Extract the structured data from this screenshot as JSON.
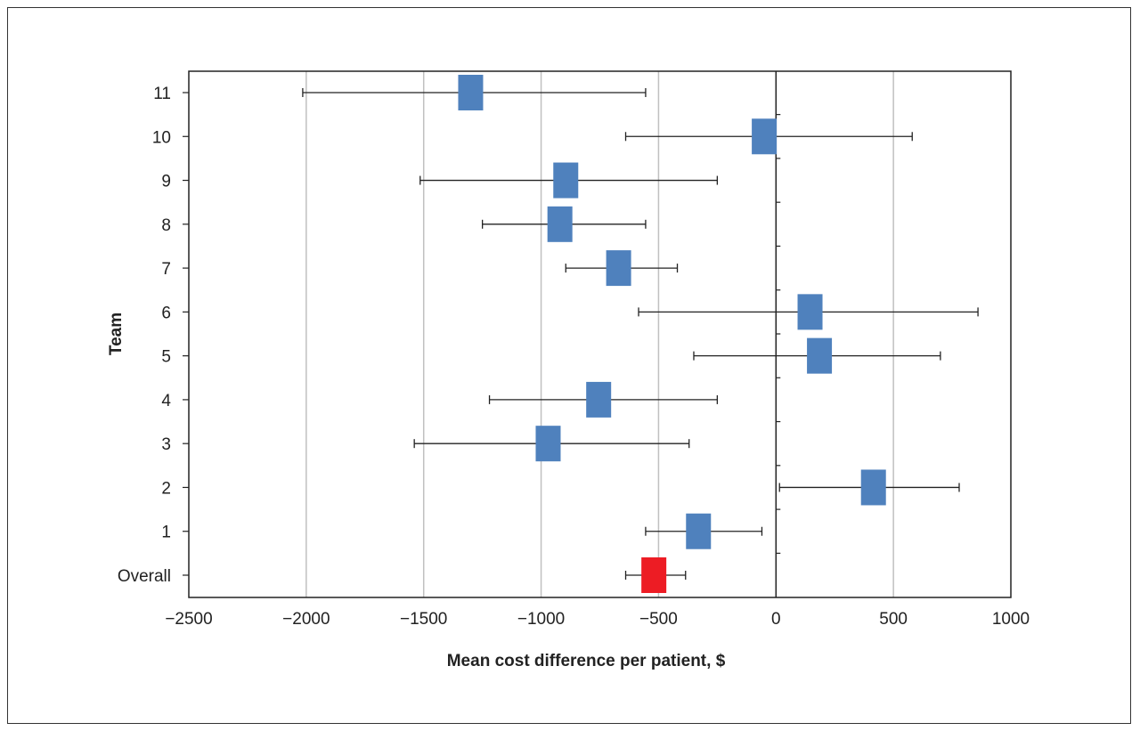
{
  "chart_data": {
    "type": "forest",
    "title": "",
    "xlabel": "Mean cost difference per patient, $",
    "ylabel": "Team",
    "xlim": [
      -2500,
      1000
    ],
    "xticks": [
      -2500,
      -2000,
      -1500,
      -1000,
      -500,
      0,
      500,
      1000
    ],
    "xtick_labels": [
      "−2500",
      "−2000",
      "−1500",
      "−1000",
      "−500",
      "0",
      "500",
      "1000"
    ],
    "grid": "vertical",
    "categories": [
      "Overall",
      "1",
      "2",
      "3",
      "4",
      "5",
      "6",
      "7",
      "8",
      "9",
      "10",
      "11"
    ],
    "points": [
      {
        "label": "Overall",
        "mean": -520,
        "lower": -640,
        "upper": -385
      },
      {
        "label": "1",
        "mean": -330,
        "lower": -555,
        "upper": -60
      },
      {
        "label": "2",
        "mean": 415,
        "lower": 15,
        "upper": 780
      },
      {
        "label": "3",
        "mean": -970,
        "lower": -1540,
        "upper": -370
      },
      {
        "label": "4",
        "mean": -755,
        "lower": -1220,
        "upper": -250
      },
      {
        "label": "5",
        "mean": 185,
        "lower": -350,
        "upper": 700
      },
      {
        "label": "6",
        "mean": 145,
        "lower": -585,
        "upper": 860
      },
      {
        "label": "7",
        "mean": -670,
        "lower": -895,
        "upper": -420
      },
      {
        "label": "8",
        "mean": -920,
        "lower": -1250,
        "upper": -555
      },
      {
        "label": "9",
        "mean": -895,
        "lower": -1515,
        "upper": -250
      },
      {
        "label": "10",
        "mean": -50,
        "lower": -640,
        "upper": 580
      },
      {
        "label": "11",
        "mean": -1300,
        "lower": -2015,
        "upper": -555
      }
    ],
    "colors": {
      "team": "#4f81bd",
      "overall": "#ed1c24",
      "grid": "#c0c0c0",
      "axis": "#222222"
    }
  }
}
